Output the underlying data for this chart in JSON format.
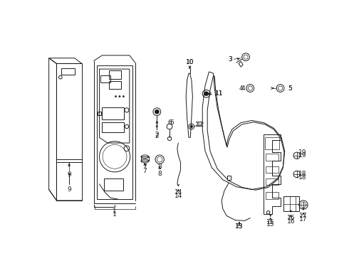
{
  "bg_color": "#ffffff",
  "line_color": "#1a1a1a",
  "lw": 0.7,
  "fs": 6.5,
  "xlim": [
    0,
    490
  ],
  "ylim": [
    0,
    360
  ]
}
